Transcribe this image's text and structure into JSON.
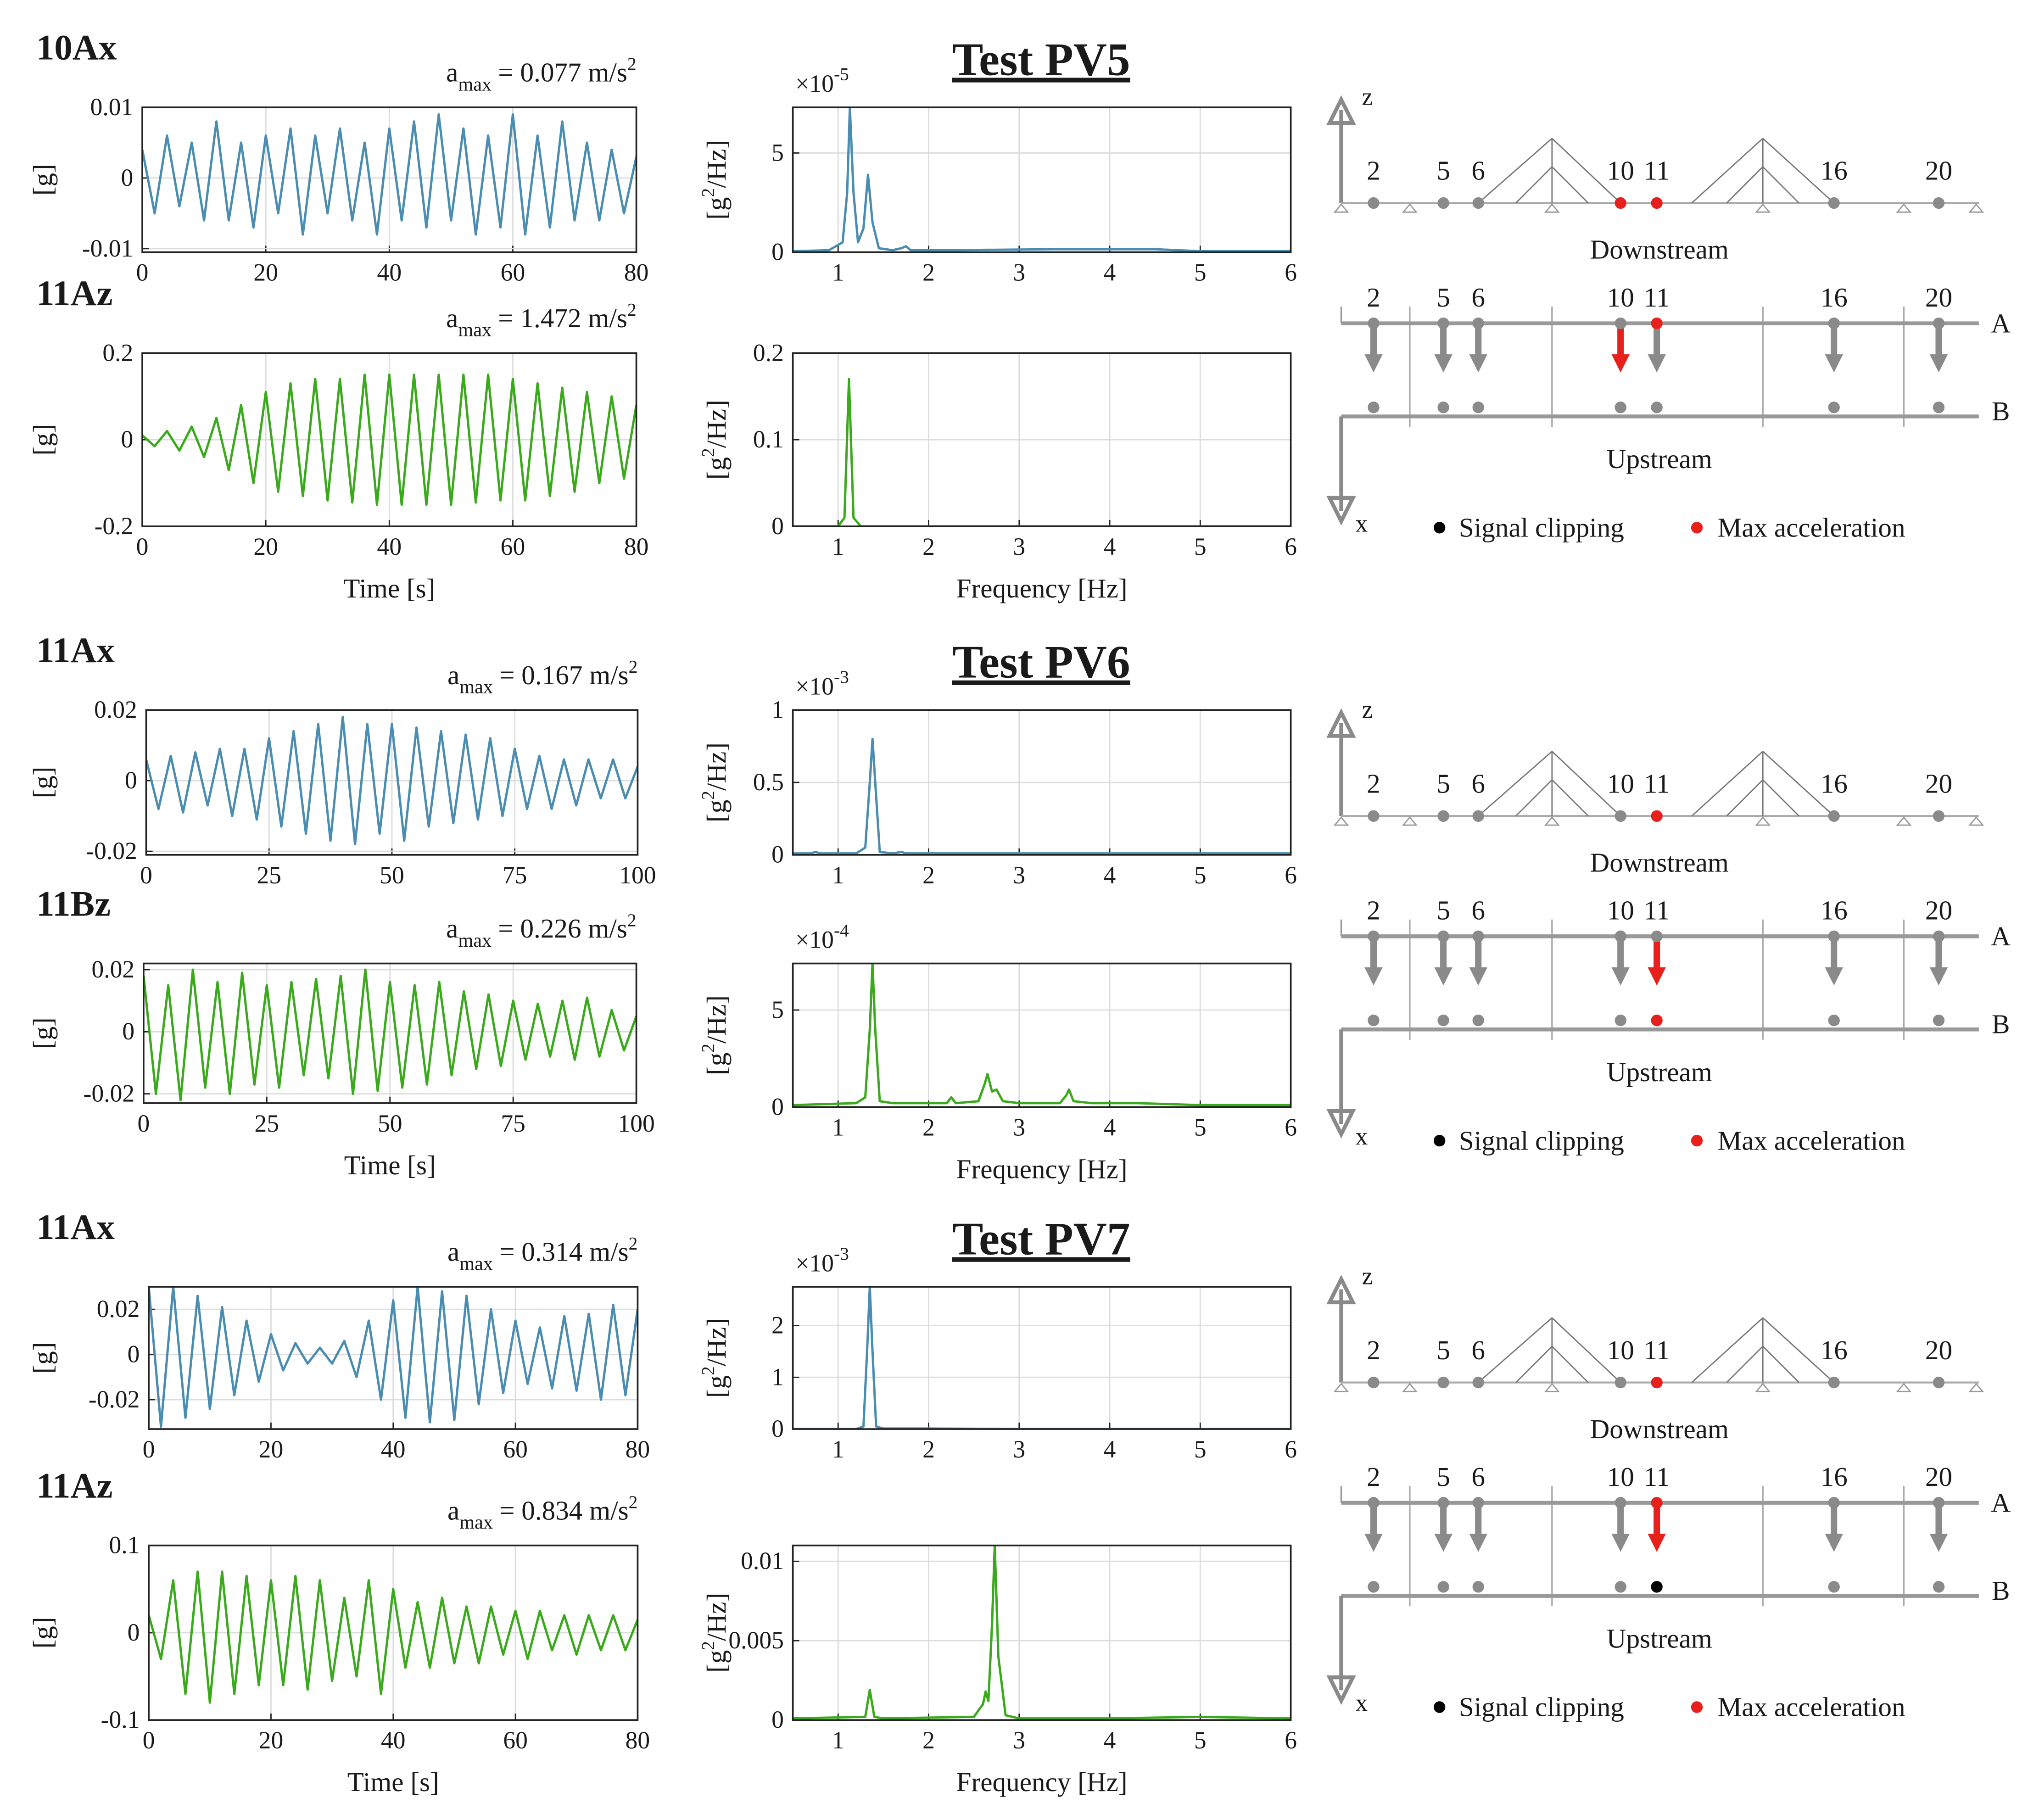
{
  "tests": [
    {
      "title": "Test PV5",
      "diagram": {
        "z": "z",
        "x": "x",
        "nodes": [
          "2",
          "5",
          "6",
          "10",
          "11",
          "16",
          "20"
        ],
        "elevation": "Downstream",
        "plan": "Upstream",
        "line_a": "A",
        "line_b": "B",
        "legend_clip": "Signal clipping",
        "legend_max": "Max acceleration",
        "elevation_max": [
          3,
          4
        ],
        "arrow_max": [
          3
        ],
        "a_max": [
          4
        ],
        "b_max": [],
        "b_clip": []
      }
    },
    {
      "title": "Test PV6",
      "diagram": {
        "z": "z",
        "x": "x",
        "nodes": [
          "2",
          "5",
          "6",
          "10",
          "11",
          "16",
          "20"
        ],
        "elevation": "Downstream",
        "plan": "Upstream",
        "line_a": "A",
        "line_b": "B",
        "legend_clip": "Signal clipping",
        "legend_max": "Max acceleration",
        "elevation_max": [
          4
        ],
        "arrow_max": [
          4
        ],
        "a_max": [],
        "b_max": [
          4
        ],
        "b_clip": []
      }
    },
    {
      "title": "Test PV7",
      "diagram": {
        "z": "z",
        "x": "x",
        "nodes": [
          "2",
          "5",
          "6",
          "10",
          "11",
          "16",
          "20"
        ],
        "elevation": "Downstream",
        "plan": "Upstream",
        "line_a": "A",
        "line_b": "B",
        "legend_clip": "Signal clipping",
        "legend_max": "Max acceleration",
        "elevation_max": [
          4
        ],
        "arrow_max": [
          4
        ],
        "a_max": [
          4
        ],
        "b_max": [],
        "b_clip": [
          4
        ]
      }
    }
  ],
  "chart_data": [
    {
      "type": "line",
      "label": "10Ax",
      "annotation": {
        "base": "a",
        "sub": "max",
        "text": "= 0.077 m/s",
        "sup": "2"
      },
      "ylabel": {
        "text": "[g]"
      },
      "color": "#4a8db0",
      "grid": true,
      "xlim": [
        0,
        80
      ],
      "xticks": [
        0,
        20,
        40,
        60,
        80
      ],
      "ylim": [
        -0.0105,
        0.01
      ],
      "yticks": [
        -0.01,
        0,
        0.01
      ],
      "x": [
        0,
        2,
        4,
        6,
        8,
        10,
        12,
        14,
        16,
        18,
        20,
        22,
        24,
        26,
        28,
        30,
        32,
        34,
        36,
        38,
        40,
        42,
        44,
        46,
        48,
        50,
        52,
        54,
        56,
        58,
        60,
        62,
        64,
        66,
        68,
        70,
        72,
        74,
        76,
        78,
        80
      ],
      "values": [
        0.004,
        -0.005,
        0.006,
        -0.004,
        0.005,
        -0.006,
        0.008,
        -0.006,
        0.005,
        -0.007,
        0.006,
        -0.005,
        0.007,
        -0.008,
        0.006,
        -0.005,
        0.007,
        -0.006,
        0.005,
        -0.008,
        0.007,
        -0.006,
        0.008,
        -0.007,
        0.009,
        -0.006,
        0.007,
        -0.008,
        0.006,
        -0.007,
        0.009,
        -0.008,
        0.006,
        -0.007,
        0.008,
        -0.006,
        0.005,
        -0.006,
        0.004,
        -0.005,
        0.003
      ]
    },
    {
      "type": "line",
      "label": "11Az",
      "annotation": {
        "base": "a",
        "sub": "max",
        "text": "= 1.472 m/s",
        "sup": "2"
      },
      "ylabel": {
        "text": "[g]"
      },
      "xlabel": "Time [s]",
      "color": "#3aaa1c",
      "grid": true,
      "xlim": [
        0,
        80
      ],
      "xticks": [
        0,
        20,
        40,
        60,
        80
      ],
      "ylim": [
        -0.2,
        0.2
      ],
      "yticks": [
        -0.2,
        0,
        0.2
      ],
      "x": [
        0,
        2,
        4,
        6,
        8,
        10,
        12,
        14,
        16,
        18,
        20,
        22,
        24,
        26,
        28,
        30,
        32,
        34,
        36,
        38,
        40,
        42,
        44,
        46,
        48,
        50,
        52,
        54,
        56,
        58,
        60,
        62,
        64,
        66,
        68,
        70,
        72,
        74,
        76,
        78,
        80
      ],
      "values": [
        0.01,
        -0.015,
        0.02,
        -0.025,
        0.03,
        -0.04,
        0.05,
        -0.07,
        0.08,
        -0.1,
        0.11,
        -0.12,
        0.13,
        -0.13,
        0.14,
        -0.14,
        0.14,
        -0.145,
        0.15,
        -0.15,
        0.15,
        -0.15,
        0.15,
        -0.15,
        0.15,
        -0.15,
        0.15,
        -0.145,
        0.15,
        -0.14,
        0.14,
        -0.14,
        0.13,
        -0.13,
        0.12,
        -0.12,
        0.11,
        -0.1,
        0.1,
        -0.09,
        0.08
      ]
    },
    {
      "type": "line",
      "ylabel": {
        "text": "[g",
        "sup": "2",
        "rest": "/Hz]"
      },
      "multiplier": {
        "base": "×10",
        "exp": "-5"
      },
      "color": "#4a8db0",
      "grid": true,
      "xlim": [
        0.5,
        6
      ],
      "xticks": [
        1,
        2,
        3,
        4,
        5,
        6
      ],
      "ylim": [
        0,
        7.3
      ],
      "yticks": [
        0,
        5
      ],
      "x": [
        0.5,
        0.9,
        1.05,
        1.1,
        1.13,
        1.17,
        1.22,
        1.28,
        1.33,
        1.38,
        1.45,
        1.6,
        1.7,
        1.75,
        1.8,
        2.2,
        3.4,
        3.7,
        4.5,
        5,
        6
      ],
      "values": [
        0.05,
        0.1,
        0.5,
        3,
        7.3,
        3,
        0.5,
        1.2,
        3.9,
        1.5,
        0.2,
        0.1,
        0.2,
        0.3,
        0.1,
        0.1,
        0.15,
        0.15,
        0.15,
        0.05,
        0.05
      ]
    },
    {
      "type": "line",
      "ylabel": {
        "text": "[g",
        "sup": "2",
        "rest": "/Hz]"
      },
      "xlabel": "Frequency [Hz]",
      "color": "#3aaa1c",
      "grid": true,
      "xlim": [
        0.5,
        6
      ],
      "xticks": [
        1,
        2,
        3,
        4,
        5,
        6
      ],
      "ylim": [
        0,
        0.2
      ],
      "yticks": [
        0,
        0.1,
        0.2
      ],
      "x": [
        0.5,
        1.0,
        1.07,
        1.12,
        1.17,
        1.25,
        2,
        3,
        4,
        5,
        6
      ],
      "values": [
        0,
        0,
        0.01,
        0.17,
        0.01,
        0,
        0,
        0,
        0,
        0,
        0
      ]
    },
    {
      "type": "line",
      "label": "11Ax",
      "annotation": {
        "base": "a",
        "sub": "max",
        "text": "= 0.167 m/s",
        "sup": "2"
      },
      "ylabel": {
        "text": "[g]"
      },
      "color": "#4a8db0",
      "grid": true,
      "xlim": [
        0,
        100
      ],
      "xticks": [
        0,
        25,
        50,
        75,
        100
      ],
      "ylim": [
        -0.021,
        0.02
      ],
      "yticks": [
        -0.02,
        0,
        0.02
      ],
      "x": [
        0,
        2.5,
        5,
        7.5,
        10,
        12.5,
        15,
        17.5,
        20,
        22.5,
        25,
        27.5,
        30,
        32.5,
        35,
        37.5,
        40,
        42.5,
        45,
        47.5,
        50,
        52.5,
        55,
        57.5,
        60,
        62.5,
        65,
        67.5,
        70,
        72.5,
        75,
        77.5,
        80,
        82.5,
        85,
        87.5,
        90,
        92.5,
        95,
        97.5,
        100
      ],
      "values": [
        0.006,
        -0.008,
        0.007,
        -0.009,
        0.008,
        -0.007,
        0.009,
        -0.01,
        0.009,
        -0.011,
        0.012,
        -0.013,
        0.014,
        -0.015,
        0.016,
        -0.017,
        0.018,
        -0.018,
        0.016,
        -0.015,
        0.016,
        -0.017,
        0.015,
        -0.013,
        0.014,
        -0.012,
        0.013,
        -0.011,
        0.012,
        -0.01,
        0.009,
        -0.008,
        0.007,
        -0.008,
        0.006,
        -0.007,
        0.006,
        -0.005,
        0.006,
        -0.005,
        0.004
      ]
    },
    {
      "type": "line",
      "label": "11Bz",
      "annotation": {
        "base": "a",
        "sub": "max",
        "text": "= 0.226 m/s",
        "sup": "2"
      },
      "ylabel": {
        "text": "[g]"
      },
      "xlabel": "Time [s]",
      "color": "#3aaa1c",
      "grid": true,
      "xlim": [
        0,
        100
      ],
      "xticks": [
        0,
        25,
        50,
        75,
        100
      ],
      "ylim": [
        -0.023,
        0.022
      ],
      "yticks": [
        -0.02,
        0,
        0.02
      ],
      "x": [
        0,
        2.5,
        5,
        7.5,
        10,
        12.5,
        15,
        17.5,
        20,
        22.5,
        25,
        27.5,
        30,
        32.5,
        35,
        37.5,
        40,
        42.5,
        45,
        47.5,
        50,
        52.5,
        55,
        57.5,
        60,
        62.5,
        65,
        67.5,
        70,
        72.5,
        75,
        77.5,
        80,
        82.5,
        85,
        87.5,
        90,
        92.5,
        95,
        97.5,
        100
      ],
      "values": [
        0.018,
        -0.02,
        0.015,
        -0.022,
        0.02,
        -0.018,
        0.016,
        -0.02,
        0.019,
        -0.017,
        0.015,
        -0.018,
        0.016,
        -0.014,
        0.017,
        -0.015,
        0.018,
        -0.02,
        0.02,
        -0.019,
        0.016,
        -0.018,
        0.015,
        -0.017,
        0.016,
        -0.014,
        0.013,
        -0.012,
        0.012,
        -0.011,
        0.01,
        -0.009,
        0.009,
        -0.008,
        0.01,
        -0.009,
        0.011,
        -0.008,
        0.007,
        -0.006,
        0.005
      ]
    },
    {
      "type": "line",
      "ylabel": {
        "text": "[g",
        "sup": "2",
        "rest": "/Hz]"
      },
      "multiplier": {
        "base": "×10",
        "exp": "-3"
      },
      "color": "#4a8db0",
      "grid": true,
      "xlim": [
        0.5,
        6
      ],
      "xticks": [
        1,
        2,
        3,
        4,
        5,
        6
      ],
      "ylim": [
        0,
        1
      ],
      "yticks": [
        0,
        0.5,
        1
      ],
      "x": [
        0.5,
        0.7,
        0.75,
        0.8,
        1.2,
        1.3,
        1.35,
        1.38,
        1.41,
        1.46,
        1.6,
        1.7,
        1.75,
        2,
        3,
        4,
        5,
        6
      ],
      "values": [
        0.01,
        0.01,
        0.02,
        0.01,
        0.01,
        0.05,
        0.5,
        0.8,
        0.5,
        0.02,
        0.01,
        0.02,
        0.01,
        0.01,
        0.01,
        0.01,
        0.01,
        0.01
      ]
    },
    {
      "type": "line",
      "ylabel": {
        "text": "[g",
        "sup": "2",
        "rest": "/Hz]"
      },
      "multiplier": {
        "base": "×10",
        "exp": "-4"
      },
      "xlabel": "Frequency [Hz]",
      "color": "#3aaa1c",
      "grid": true,
      "xlim": [
        0.5,
        6
      ],
      "xticks": [
        1,
        2,
        3,
        4,
        5,
        6
      ],
      "ylim": [
        0,
        7.4
      ],
      "yticks": [
        0,
        5
      ],
      "x": [
        0.5,
        1.2,
        1.3,
        1.35,
        1.38,
        1.41,
        1.46,
        1.6,
        2.2,
        2.25,
        2.3,
        2.55,
        2.62,
        2.65,
        2.7,
        2.75,
        2.82,
        3.0,
        3.45,
        3.52,
        3.55,
        3.6,
        3.8,
        4.3,
        5,
        6
      ],
      "values": [
        0.1,
        0.2,
        0.5,
        4,
        7.4,
        4,
        0.3,
        0.2,
        0.2,
        0.5,
        0.2,
        0.3,
        1.2,
        1.7,
        0.8,
        0.9,
        0.3,
        0.2,
        0.2,
        0.6,
        0.9,
        0.3,
        0.2,
        0.2,
        0.1,
        0.1
      ]
    },
    {
      "type": "line",
      "label": "11Ax",
      "annotation": {
        "base": "a",
        "sub": "max",
        "text": "= 0.314 m/s",
        "sup": "2"
      },
      "ylabel": {
        "text": "[g]"
      },
      "color": "#4a8db0",
      "grid": true,
      "xlim": [
        0,
        80
      ],
      "xticks": [
        0,
        20,
        40,
        60,
        80
      ],
      "ylim": [
        -0.033,
        0.03
      ],
      "yticks": [
        -0.02,
        0,
        0.02
      ],
      "x": [
        0,
        2,
        4,
        6,
        8,
        10,
        12,
        14,
        16,
        18,
        20,
        22,
        24,
        26,
        28,
        30,
        32,
        34,
        36,
        38,
        40,
        42,
        44,
        46,
        48,
        50,
        52,
        54,
        56,
        58,
        60,
        62,
        64,
        66,
        68,
        70,
        72,
        74,
        76,
        78,
        80
      ],
      "values": [
        0.03,
        -0.032,
        0.03,
        -0.028,
        0.026,
        -0.024,
        0.021,
        -0.018,
        0.015,
        -0.012,
        0.009,
        -0.007,
        0.005,
        -0.004,
        0.003,
        -0.004,
        0.006,
        -0.01,
        0.015,
        -0.02,
        0.024,
        -0.028,
        0.03,
        -0.03,
        0.028,
        -0.029,
        0.026,
        -0.022,
        0.02,
        -0.017,
        0.015,
        -0.013,
        0.012,
        -0.015,
        0.017,
        -0.016,
        0.018,
        -0.02,
        0.022,
        -0.018,
        0.02
      ]
    },
    {
      "type": "line",
      "label": "11Az",
      "annotation": {
        "base": "a",
        "sub": "max",
        "text": "= 0.834 m/s",
        "sup": "2"
      },
      "ylabel": {
        "text": "[g]"
      },
      "xlabel": "Time [s]",
      "color": "#3aaa1c",
      "grid": true,
      "xlim": [
        0,
        80
      ],
      "xticks": [
        0,
        20,
        40,
        60,
        80
      ],
      "ylim": [
        -0.1,
        0.1
      ],
      "yticks": [
        -0.1,
        0,
        0.1
      ],
      "x": [
        0,
        2,
        4,
        6,
        8,
        10,
        12,
        14,
        16,
        18,
        20,
        22,
        24,
        26,
        28,
        30,
        32,
        34,
        36,
        38,
        40,
        42,
        44,
        46,
        48,
        50,
        52,
        54,
        56,
        58,
        60,
        62,
        64,
        66,
        68,
        70,
        72,
        74,
        76,
        78,
        80
      ],
      "values": [
        0.02,
        -0.03,
        0.06,
        -0.07,
        0.07,
        -0.08,
        0.07,
        -0.07,
        0.065,
        -0.06,
        0.06,
        -0.06,
        0.065,
        -0.065,
        0.06,
        -0.055,
        0.04,
        -0.05,
        0.06,
        -0.07,
        0.05,
        -0.04,
        0.035,
        -0.04,
        0.04,
        -0.035,
        0.03,
        -0.035,
        0.03,
        -0.025,
        0.025,
        -0.03,
        0.025,
        -0.02,
        0.02,
        -0.025,
        0.02,
        -0.02,
        0.02,
        -0.02,
        0.015
      ]
    },
    {
      "type": "line",
      "ylabel": {
        "text": "[g",
        "sup": "2",
        "rest": "/Hz]"
      },
      "multiplier": {
        "base": "×10",
        "exp": "-3"
      },
      "color": "#4a8db0",
      "grid": true,
      "xlim": [
        0.5,
        6
      ],
      "xticks": [
        1,
        2,
        3,
        4,
        5,
        6
      ],
      "ylim": [
        0,
        2.75
      ],
      "yticks": [
        0,
        1,
        2
      ],
      "x": [
        0.5,
        1.2,
        1.28,
        1.32,
        1.35,
        1.38,
        1.42,
        1.5,
        2,
        3,
        4,
        5,
        6
      ],
      "values": [
        0,
        0,
        0.05,
        1.5,
        2.75,
        1.5,
        0.05,
        0.01,
        0.01,
        0,
        0,
        0,
        0
      ]
    },
    {
      "type": "line",
      "ylabel": {
        "text": "[g",
        "sup": "2",
        "rest": "/Hz]"
      },
      "xlabel": "Frequency [Hz]",
      "color": "#3aaa1c",
      "grid": true,
      "xlim": [
        0.5,
        6
      ],
      "xticks": [
        1,
        2,
        3,
        4,
        5,
        6
      ],
      "ylim": [
        0,
        0.011
      ],
      "yticks": [
        0,
        0.005,
        0.01
      ],
      "x": [
        0.5,
        1.3,
        1.35,
        1.4,
        1.5,
        2.5,
        2.6,
        2.63,
        2.66,
        2.7,
        2.73,
        2.77,
        2.85,
        3,
        4,
        5,
        6
      ],
      "values": [
        0.0001,
        0.0002,
        0.0019,
        0.0002,
        0.0001,
        0.0002,
        0.001,
        0.0018,
        0.0012,
        0.006,
        0.011,
        0.004,
        0.0003,
        0.0001,
        0.0001,
        0.0002,
        0.0001
      ]
    }
  ]
}
